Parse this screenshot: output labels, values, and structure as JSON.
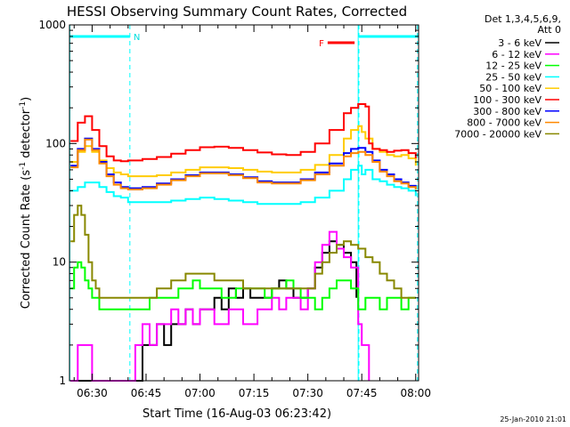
{
  "chart_data": {
    "type": "line",
    "title": "HESSI Observing Summary Count Rates, Corrected",
    "xlabel": "Start Time (16-Aug-03 06:23:42)",
    "ylabel": "Corrected Count Rate (s",
    "ylabel_sup1": "-1",
    "ylabel_mid": " detector",
    "ylabel_sup2": "-1",
    "ylabel_end": ")",
    "y_scale": "log",
    "ylim": [
      1,
      1000
    ],
    "xlim_minutes": [
      23.7,
      120.8
    ],
    "x_tick_labels": [
      {
        "label": "06:30",
        "minute": 30
      },
      {
        "label": "06:45",
        "minute": 45
      },
      {
        "label": "07:00",
        "minute": 60
      },
      {
        "label": "07:15",
        "minute": 75
      },
      {
        "label": "07:30",
        "minute": 90
      },
      {
        "label": "07:45",
        "minute": 105
      },
      {
        "label": "08:00",
        "minute": 120
      }
    ],
    "y_tick_labels": [
      {
        "label": "1",
        "value": 1
      },
      {
        "label": "10",
        "value": 10
      },
      {
        "label": "100",
        "value": 100
      },
      {
        "label": "1000",
        "value": 1000
      }
    ],
    "legend_header": [
      "Det 1,3,4,5,6,9,",
      "Att 0"
    ],
    "legend_placement": "right",
    "footer_date": "25-Jan-2010 21:01",
    "annotations": {
      "night_label": "N",
      "flare_label": "F",
      "night_bars": [
        [
          23.7,
          40.5
        ],
        [
          104.2,
          120.8
        ]
      ],
      "flare_bar": [
        95.5,
        103.0
      ],
      "night_boundaries": [
        40.5,
        104.2,
        120.5
      ],
      "cyan_vlines": [
        23.8,
        104.0
      ]
    },
    "series": [
      {
        "name": "3 - 6 keV",
        "color": "#000000",
        "x": [
          24,
          28,
          34,
          38,
          42,
          44,
          46,
          48,
          50,
          52,
          54,
          56,
          58,
          60,
          62,
          64,
          66,
          68,
          70,
          72,
          74,
          76,
          78,
          80,
          82,
          84,
          86,
          88,
          90,
          92,
          94,
          96,
          98,
          100,
          102,
          103.5
        ],
        "y": [
          1,
          1,
          1,
          1,
          1,
          2,
          2,
          3,
          2,
          3,
          3,
          4,
          3,
          4,
          4,
          5,
          4,
          6,
          5,
          6,
          5,
          5,
          5,
          6,
          7,
          6,
          5,
          5,
          6,
          9,
          12,
          15,
          14,
          12,
          10,
          5
        ]
      },
      {
        "name": "6 - 12 keV",
        "color": "#ff00ff",
        "x": [
          24,
          26,
          28,
          30,
          32,
          38,
          42,
          44,
          46,
          48,
          50,
          52,
          54,
          56,
          58,
          60,
          62,
          64,
          66,
          68,
          70,
          72,
          74,
          76,
          78,
          80,
          82,
          84,
          86,
          88,
          90,
          92,
          94,
          96,
          98,
          100,
          102,
          104,
          105,
          106,
          107
        ],
        "y": [
          1,
          2,
          2,
          1,
          1,
          1,
          2,
          3,
          2,
          3,
          3,
          4,
          3,
          4,
          3,
          4,
          4,
          3,
          3,
          4,
          4,
          3,
          3,
          4,
          4,
          5,
          4,
          5,
          5,
          4,
          6,
          10,
          14,
          18,
          13,
          11,
          9,
          3,
          2,
          2,
          1
        ]
      },
      {
        "name": "12 - 25 keV",
        "color": "#00ff00",
        "x": [
          24,
          25,
          26,
          27,
          28,
          29,
          30,
          32,
          34,
          36,
          38,
          40,
          42,
          44,
          46,
          48,
          50,
          52,
          54,
          56,
          58,
          60,
          62,
          64,
          66,
          68,
          70,
          72,
          74,
          76,
          78,
          80,
          82,
          84,
          86,
          88,
          90,
          92,
          94,
          96,
          98,
          100,
          102,
          104,
          106,
          108,
          110,
          112,
          114,
          116,
          118,
          120
        ],
        "y": [
          6,
          9,
          10,
          9,
          7,
          6,
          5,
          4,
          4,
          4,
          4,
          4,
          4,
          4,
          5,
          5,
          5,
          5,
          6,
          6,
          7,
          6,
          6,
          6,
          5,
          5,
          6,
          6,
          6,
          6,
          5,
          6,
          6,
          7,
          6,
          5,
          5,
          4,
          5,
          6,
          7,
          7,
          6,
          4,
          5,
          5,
          4,
          5,
          5,
          4,
          5,
          5
        ]
      },
      {
        "name": "25 - 50 keV",
        "color": "#00ffff",
        "x": [
          24,
          26,
          28,
          30,
          32,
          34,
          36,
          38,
          40,
          44,
          48,
          52,
          56,
          60,
          64,
          68,
          72,
          76,
          80,
          84,
          88,
          92,
          96,
          100,
          102,
          104,
          105,
          106,
          108,
          110,
          112,
          114,
          116,
          118,
          120
        ],
        "y": [
          40,
          43,
          47,
          47,
          43,
          39,
          36,
          35,
          32,
          32,
          32,
          33,
          34,
          35,
          34,
          33,
          32,
          31,
          31,
          31,
          32,
          35,
          40,
          50,
          60,
          65,
          55,
          60,
          50,
          48,
          45,
          43,
          42,
          40,
          36
        ]
      },
      {
        "name": "50 - 100 keV",
        "color": "#ffcc00",
        "x": [
          24,
          26,
          28,
          30,
          32,
          34,
          36,
          38,
          40,
          44,
          48,
          52,
          56,
          60,
          64,
          68,
          72,
          76,
          80,
          84,
          88,
          92,
          96,
          100,
          102,
          104,
          105,
          106,
          108,
          110,
          112,
          114,
          116,
          118,
          120
        ],
        "y": [
          70,
          85,
          95,
          85,
          72,
          62,
          57,
          55,
          53,
          53,
          54,
          57,
          60,
          63,
          63,
          62,
          60,
          58,
          57,
          57,
          60,
          66,
          80,
          110,
          130,
          140,
          125,
          110,
          90,
          85,
          80,
          78,
          80,
          75,
          65
        ]
      },
      {
        "name": "100 - 300 keV",
        "color": "#ff0000",
        "x": [
          24,
          26,
          28,
          30,
          32,
          34,
          36,
          38,
          40,
          44,
          48,
          52,
          56,
          60,
          64,
          68,
          72,
          76,
          80,
          84,
          88,
          92,
          96,
          100,
          102,
          104,
          106,
          107,
          108,
          110,
          112,
          114,
          116,
          118,
          120
        ],
        "y": [
          105,
          150,
          170,
          130,
          95,
          78,
          72,
          71,
          72,
          74,
          77,
          82,
          88,
          93,
          94,
          92,
          88,
          84,
          81,
          80,
          85,
          100,
          130,
          180,
          200,
          215,
          205,
          100,
          90,
          88,
          85,
          87,
          88,
          83,
          75
        ]
      },
      {
        "name": "300 - 800 keV",
        "color": "#0000ff",
        "x": [
          24,
          26,
          28,
          30,
          32,
          34,
          36,
          38,
          40,
          44,
          48,
          52,
          56,
          60,
          64,
          68,
          72,
          76,
          80,
          84,
          88,
          92,
          96,
          100,
          102,
          104,
          106,
          108,
          110,
          112,
          114,
          116,
          118,
          120
        ],
        "y": [
          65,
          90,
          110,
          90,
          70,
          55,
          47,
          43,
          42,
          43,
          46,
          50,
          54,
          57,
          57,
          55,
          52,
          48,
          47,
          47,
          50,
          57,
          68,
          83,
          90,
          92,
          85,
          72,
          60,
          55,
          50,
          47,
          44,
          42
        ]
      },
      {
        "name": "800 - 7000 keV",
        "color": "#ff8800",
        "x": [
          24,
          26,
          28,
          30,
          32,
          34,
          36,
          38,
          40,
          44,
          48,
          52,
          56,
          60,
          64,
          68,
          72,
          76,
          80,
          84,
          88,
          92,
          96,
          100,
          102,
          104,
          106,
          108,
          110,
          112,
          114,
          116,
          118,
          120
        ],
        "y": [
          63,
          88,
          108,
          88,
          68,
          53,
          45,
          42,
          41,
          42,
          45,
          49,
          53,
          56,
          56,
          54,
          51,
          47,
          46,
          46,
          49,
          55,
          65,
          78,
          83,
          85,
          80,
          70,
          58,
          53,
          48,
          46,
          43,
          41
        ]
      },
      {
        "name": "7000 - 20000 keV",
        "color": "#888800",
        "x": [
          24,
          25,
          26,
          27,
          28,
          29,
          30,
          31,
          32,
          34,
          36,
          38,
          40,
          44,
          48,
          52,
          56,
          60,
          64,
          68,
          72,
          76,
          80,
          84,
          88,
          92,
          94,
          96,
          98,
          100,
          102,
          104,
          106,
          108,
          110,
          112,
          114,
          116,
          118,
          120
        ],
        "y": [
          15,
          25,
          30,
          25,
          17,
          10,
          7,
          6,
          5,
          5,
          5,
          5,
          5,
          5,
          6,
          7,
          8,
          8,
          7,
          7,
          6,
          6,
          6,
          6,
          6,
          8,
          10,
          12,
          14,
          15,
          14,
          13,
          11,
          10,
          8,
          7,
          6,
          5,
          5,
          5
        ]
      }
    ]
  }
}
